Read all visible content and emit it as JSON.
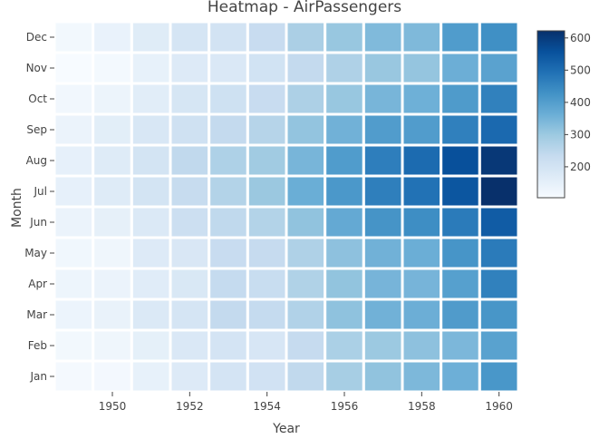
{
  "chart_data": {
    "type": "heatmap",
    "title": "Heatmap - AirPassengers",
    "xlabel": "Year",
    "ylabel": "Month",
    "x": [
      1949,
      1950,
      1951,
      1952,
      1953,
      1954,
      1955,
      1956,
      1957,
      1958,
      1959,
      1960
    ],
    "y": [
      "Jan",
      "Feb",
      "Mar",
      "Apr",
      "May",
      "Jun",
      "Jul",
      "Aug",
      "Sep",
      "Oct",
      "Nov",
      "Dec"
    ],
    "x_tick_labels": [
      "1950",
      "1952",
      "1954",
      "1956",
      "1958",
      "1960"
    ],
    "y_tick_labels": [
      "Jan",
      "Feb",
      "Mar",
      "Apr",
      "May",
      "Jun",
      "Jul",
      "Aug",
      "Sep",
      "Oct",
      "Nov",
      "Dec"
    ],
    "z": [
      [
        112,
        115,
        145,
        171,
        196,
        204,
        242,
        284,
        315,
        340,
        360,
        417
      ],
      [
        118,
        126,
        150,
        180,
        196,
        188,
        233,
        277,
        301,
        318,
        342,
        391
      ],
      [
        132,
        141,
        178,
        193,
        236,
        235,
        267,
        317,
        356,
        362,
        406,
        419
      ],
      [
        129,
        135,
        163,
        181,
        235,
        227,
        269,
        313,
        348,
        348,
        396,
        461
      ],
      [
        121,
        125,
        172,
        183,
        229,
        234,
        270,
        318,
        355,
        363,
        420,
        472
      ],
      [
        135,
        149,
        178,
        218,
        243,
        264,
        315,
        374,
        422,
        435,
        472,
        535
      ],
      [
        148,
        170,
        199,
        230,
        264,
        302,
        364,
        413,
        465,
        491,
        548,
        622
      ],
      [
        148,
        170,
        199,
        242,
        272,
        293,
        347,
        405,
        467,
        505,
        559,
        606
      ],
      [
        136,
        158,
        184,
        209,
        237,
        259,
        312,
        355,
        404,
        404,
        463,
        508
      ],
      [
        119,
        133,
        162,
        191,
        211,
        229,
        274,
        306,
        347,
        359,
        407,
        461
      ],
      [
        104,
        114,
        146,
        172,
        180,
        203,
        237,
        271,
        305,
        310,
        362,
        390
      ],
      [
        118,
        140,
        166,
        194,
        201,
        229,
        278,
        306,
        336,
        337,
        405,
        432
      ]
    ],
    "zmin": 104,
    "zmax": 622,
    "colorscale": [
      "#f7fbff",
      "#deebf7",
      "#c6dbef",
      "#9ecae1",
      "#6baed6",
      "#4292c6",
      "#2171b5",
      "#08519c",
      "#08306b"
    ],
    "colorbar_ticks": [
      "200",
      "300",
      "400",
      "500",
      "600"
    ],
    "colorbar_tick_values": [
      200,
      300,
      400,
      500,
      600
    ],
    "cell_gap_color": "#ffffff",
    "text_color": "#444444",
    "grid": false,
    "legend": "colorbar-right"
  }
}
